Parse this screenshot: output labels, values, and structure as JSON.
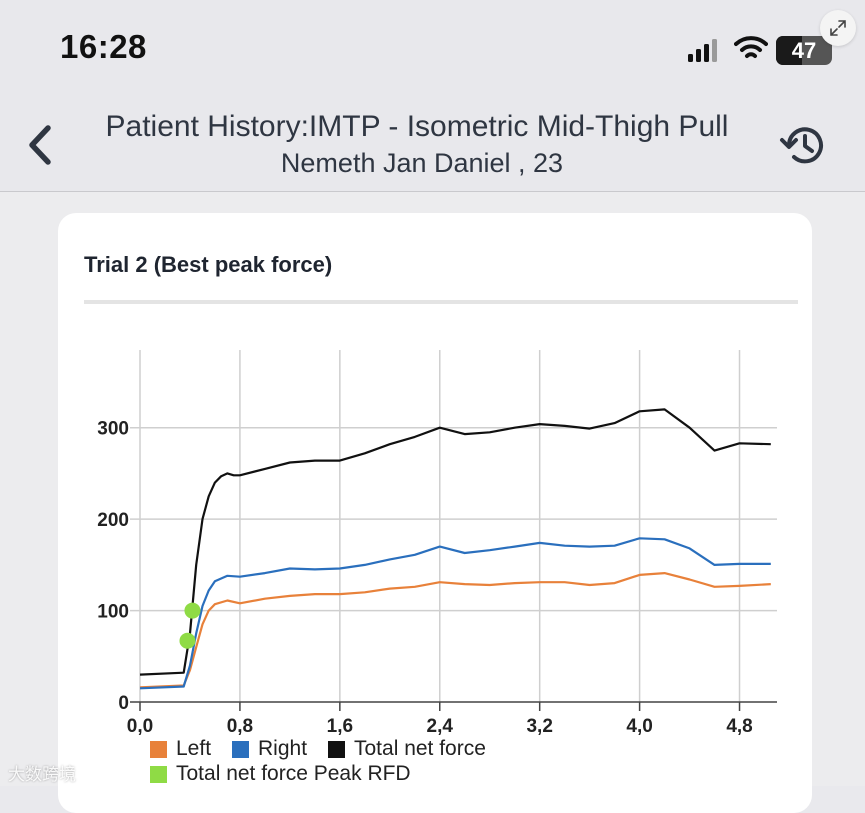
{
  "status_bar": {
    "time": "16:28",
    "battery_level": "47",
    "battery_fraction": 0.47,
    "signal_icon": "cellular-signal-icon",
    "wifi_icon": "wifi-icon",
    "expand_icon": "expand-icon"
  },
  "nav": {
    "title": "Patient History:IMTP - Isometric Mid-Thigh Pull",
    "subtitle": "Nemeth Jan Daniel , 23",
    "back_icon": "chevron-left-icon",
    "history_icon": "history-icon"
  },
  "card": {
    "title": "Trial 2 (Best peak force)"
  },
  "legend": {
    "left": "Left",
    "right": "Right",
    "total": "Total net force",
    "peak": "Total net force Peak RFD"
  },
  "watermark": "大数跨境",
  "colors": {
    "left": "#e8813a",
    "right": "#2a6fbd",
    "total": "#111111",
    "peak": "#8fdb45",
    "grid": "#cfcfcf",
    "axis": "#444444"
  },
  "chart_data": {
    "type": "line",
    "title": "Trial 2 (Best peak force)",
    "xlabel": "",
    "ylabel": "",
    "xlim": [
      0,
      5.1
    ],
    "ylim": [
      0,
      385
    ],
    "x_ticks": [
      0,
      0.8,
      1.6,
      2.4,
      3.2,
      4.0,
      4.8
    ],
    "x_tick_labels": [
      "0,0",
      "0,8",
      "1,6",
      "2,4",
      "3,2",
      "4,0",
      "4,8"
    ],
    "y_ticks": [
      0,
      100,
      200,
      300
    ],
    "y_tick_labels": [
      "0",
      "100",
      "200",
      "300"
    ],
    "legend_position": "bottom-left",
    "series": [
      {
        "name": "Left",
        "color": "#e8813a",
        "x": [
          0,
          0.35,
          0.4,
          0.45,
          0.5,
          0.55,
          0.6,
          0.7,
          0.8,
          1.0,
          1.2,
          1.4,
          1.6,
          1.8,
          2.0,
          2.2,
          2.4,
          2.6,
          2.8,
          3.0,
          3.2,
          3.4,
          3.6,
          3.8,
          4.0,
          4.2,
          4.4,
          4.6,
          4.8,
          5.05
        ],
        "y": [
          16,
          18,
          35,
          60,
          85,
          100,
          107,
          111,
          108,
          113,
          116,
          118,
          118,
          120,
          124,
          126,
          131,
          129,
          128,
          130,
          131,
          131,
          128,
          130,
          139,
          141,
          134,
          126,
          127,
          129
        ]
      },
      {
        "name": "Right",
        "color": "#2a6fbd",
        "x": [
          0,
          0.35,
          0.4,
          0.45,
          0.5,
          0.55,
          0.6,
          0.7,
          0.8,
          1.0,
          1.2,
          1.4,
          1.6,
          1.8,
          2.0,
          2.2,
          2.4,
          2.6,
          2.8,
          3.0,
          3.2,
          3.4,
          3.6,
          3.8,
          4.0,
          4.2,
          4.4,
          4.6,
          4.8,
          5.05
        ],
        "y": [
          15,
          17,
          40,
          75,
          105,
          122,
          132,
          138,
          137,
          141,
          146,
          145,
          146,
          150,
          156,
          161,
          170,
          163,
          166,
          170,
          174,
          171,
          170,
          171,
          179,
          178,
          168,
          150,
          151,
          151
        ]
      },
      {
        "name": "Total net force",
        "color": "#111111",
        "x": [
          0,
          0.35,
          0.4,
          0.45,
          0.5,
          0.55,
          0.6,
          0.65,
          0.7,
          0.75,
          0.8,
          1.0,
          1.2,
          1.4,
          1.6,
          1.8,
          2.0,
          2.2,
          2.4,
          2.6,
          2.8,
          3.0,
          3.2,
          3.4,
          3.6,
          3.8,
          4.0,
          4.2,
          4.4,
          4.6,
          4.8,
          5.05
        ],
        "y": [
          30,
          32,
          75,
          150,
          200,
          225,
          240,
          247,
          250,
          248,
          248,
          255,
          262,
          264,
          264,
          272,
          282,
          290,
          300,
          293,
          295,
          300,
          304,
          302,
          299,
          305,
          318,
          320,
          300,
          275,
          283,
          282
        ]
      }
    ],
    "peak_rfd_points": [
      {
        "x": 0.38,
        "y": 67
      },
      {
        "x": 0.42,
        "y": 100
      }
    ]
  }
}
